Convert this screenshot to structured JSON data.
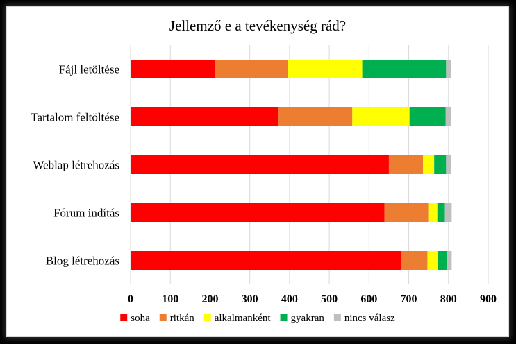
{
  "chart_data": {
    "type": "bar",
    "orientation": "horizontal",
    "stacked": true,
    "title": "Jellemző e a tevékenység rád?",
    "xlabel": "",
    "ylabel": "",
    "xlim": [
      0,
      900
    ],
    "xticks": [
      0,
      100,
      200,
      300,
      400,
      500,
      600,
      700,
      800,
      900
    ],
    "grid": true,
    "legend_position": "bottom",
    "categories": [
      "Fájl letöltése",
      "Tartalom feltöltése",
      "Weblap létrehozás",
      "Fórum indítás",
      "Blog létrehozás"
    ],
    "series": [
      {
        "name": "soha",
        "color": "#ff0000",
        "values": [
          212,
          371,
          650,
          639,
          680
        ]
      },
      {
        "name": "ritkán",
        "color": "#ed7d31",
        "values": [
          183,
          187,
          86,
          112,
          67
        ]
      },
      {
        "name": "alkalmanként",
        "color": "#ffff00",
        "values": [
          188,
          144,
          28,
          21,
          27
        ]
      },
      {
        "name": "gyakran",
        "color": "#00b050",
        "values": [
          211,
          91,
          30,
          19,
          23
        ]
      },
      {
        "name": "nincs válasz",
        "color": "#bfbfbf",
        "values": [
          12,
          14,
          13,
          17,
          11
        ]
      }
    ]
  }
}
